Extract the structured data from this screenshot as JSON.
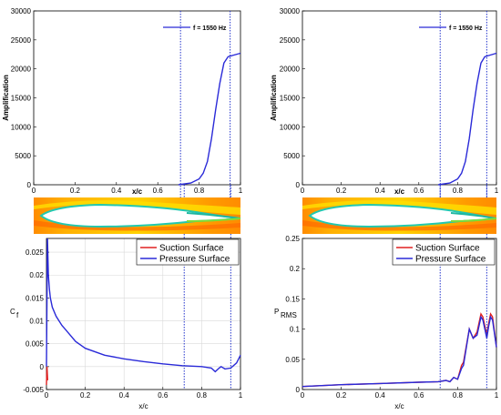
{
  "colors": {
    "blue": "#2a2ad8",
    "red": "#e02020",
    "dotted": "#2233cc",
    "contour": [
      "#ff8c00",
      "#ffd200",
      "#7fdc3a",
      "#22c8b0"
    ]
  },
  "chart_data": [
    {
      "id": "amp-left",
      "type": "line",
      "ylabel": "Amplification",
      "xlabel": "x/c",
      "xlim": [
        0,
        1
      ],
      "ylim": [
        0,
        30000
      ],
      "xticks": [
        "0",
        "0.2",
        "0.4",
        "0.6",
        "0.8",
        "1"
      ],
      "yticks": [
        "0",
        "5000",
        "10000",
        "15000",
        "20000",
        "25000",
        "30000"
      ],
      "legend": "f = 1550 Hz",
      "series": [
        {
          "name": "f = 1550 Hz",
          "color": "blue",
          "x": [
            0.7,
            0.76,
            0.8,
            0.82,
            0.84,
            0.86,
            0.88,
            0.9,
            0.92,
            0.94,
            0.96,
            1.0
          ],
          "y": [
            0,
            300,
            1000,
            2000,
            4000,
            8000,
            13000,
            17500,
            21000,
            22100,
            22300,
            22700
          ]
        }
      ],
      "vlines": [
        0.71,
        0.95
      ]
    },
    {
      "id": "amp-right",
      "type": "line",
      "ylabel": "Amplification",
      "xlabel": "x/c",
      "xlim": [
        0,
        1
      ],
      "ylim": [
        0,
        30000
      ],
      "xticks": [
        "0",
        "0.2",
        "0.4",
        "0.6",
        "0.8",
        "1"
      ],
      "yticks": [
        "0",
        "5000",
        "10000",
        "15000",
        "20000",
        "25000",
        "30000"
      ],
      "legend": "f = 1550 Hz",
      "series": [
        {
          "name": "f = 1550 Hz",
          "color": "blue",
          "x": [
            0.7,
            0.76,
            0.8,
            0.82,
            0.84,
            0.86,
            0.88,
            0.9,
            0.92,
            0.94,
            0.96,
            1.0
          ],
          "y": [
            0,
            300,
            1000,
            2000,
            4000,
            8000,
            13000,
            17500,
            21000,
            22100,
            22300,
            22700
          ]
        }
      ],
      "vlines": [
        0.71,
        0.95
      ]
    },
    {
      "id": "cf",
      "type": "line",
      "ylabel": "C",
      "ylabel_sub": "f",
      "xlabel": "x/c",
      "xlim": [
        0,
        1
      ],
      "ylim": [
        -0.005,
        0.028
      ],
      "xticks": [
        "0",
        "0.2",
        "0.4",
        "0.6",
        "0.8",
        "1"
      ],
      "yticks": [
        "-0.005",
        "0",
        "0.005",
        "0.01",
        "0.015",
        "0.02",
        "0.025"
      ],
      "grid": true,
      "series": [
        {
          "name": "Suction Surface",
          "color": "red",
          "x": [
            0.0,
            0.003,
            0.006
          ],
          "y": [
            -0.004,
            0.0,
            -0.003
          ]
        },
        {
          "name": "Pressure Surface",
          "color": "blue",
          "x": [
            0.0,
            0.005,
            0.01,
            0.015,
            0.02,
            0.03,
            0.05,
            0.08,
            0.1,
            0.15,
            0.2,
            0.3,
            0.4,
            0.5,
            0.6,
            0.7,
            0.8,
            0.85,
            0.87,
            0.89,
            0.9,
            0.92,
            0.95,
            0.98,
            1.0
          ],
          "y": [
            0.0,
            0.028,
            0.02,
            0.017,
            0.015,
            0.013,
            0.011,
            0.009,
            0.008,
            0.0055,
            0.004,
            0.0025,
            0.0017,
            0.0011,
            0.0006,
            0.0002,
            0.0,
            -0.0003,
            -0.0011,
            -0.0003,
            0.0,
            -0.0005,
            -0.0003,
            0.0008,
            0.0025
          ]
        }
      ],
      "legend_entries": [
        "Suction Surface",
        "Pressure Surface"
      ],
      "vlines": [
        0.71,
        0.95
      ]
    },
    {
      "id": "prms",
      "type": "line",
      "ylabel": "P",
      "ylabel_sub": "RMS",
      "xlabel": "x/c",
      "xlim": [
        0,
        1
      ],
      "ylim": [
        0,
        0.25
      ],
      "xticks": [
        "0",
        "0.2",
        "0.4",
        "0.6",
        "0.8",
        "1"
      ],
      "yticks": [
        "0",
        "0.05",
        "0.1",
        "0.15",
        "0.2",
        "0.25"
      ],
      "series": [
        {
          "name": "Suction Surface",
          "color": "red",
          "x": [
            0.0,
            0.2,
            0.4,
            0.6,
            0.7,
            0.74,
            0.76,
            0.78,
            0.8,
            0.82,
            0.83,
            0.86,
            0.88,
            0.9,
            0.92,
            0.93,
            0.95,
            0.96,
            0.97,
            0.98,
            1.0
          ],
          "y": [
            0.005,
            0.008,
            0.01,
            0.012,
            0.013,
            0.015,
            0.013,
            0.02,
            0.017,
            0.04,
            0.045,
            0.1,
            0.085,
            0.095,
            0.125,
            0.12,
            0.09,
            0.11,
            0.125,
            0.12,
            0.07
          ]
        },
        {
          "name": "Pressure Surface",
          "color": "blue",
          "x": [
            0.0,
            0.2,
            0.4,
            0.6,
            0.7,
            0.74,
            0.76,
            0.78,
            0.8,
            0.82,
            0.83,
            0.86,
            0.88,
            0.9,
            0.92,
            0.93,
            0.95,
            0.96,
            0.97,
            0.98,
            1.0
          ],
          "y": [
            0.005,
            0.008,
            0.01,
            0.012,
            0.013,
            0.015,
            0.013,
            0.02,
            0.017,
            0.035,
            0.04,
            0.1,
            0.085,
            0.09,
            0.12,
            0.115,
            0.085,
            0.105,
            0.12,
            0.115,
            0.07
          ]
        }
      ],
      "legend_entries": [
        "Suction Surface",
        "Pressure Surface"
      ],
      "vlines": [
        0.71,
        0.95
      ]
    }
  ]
}
